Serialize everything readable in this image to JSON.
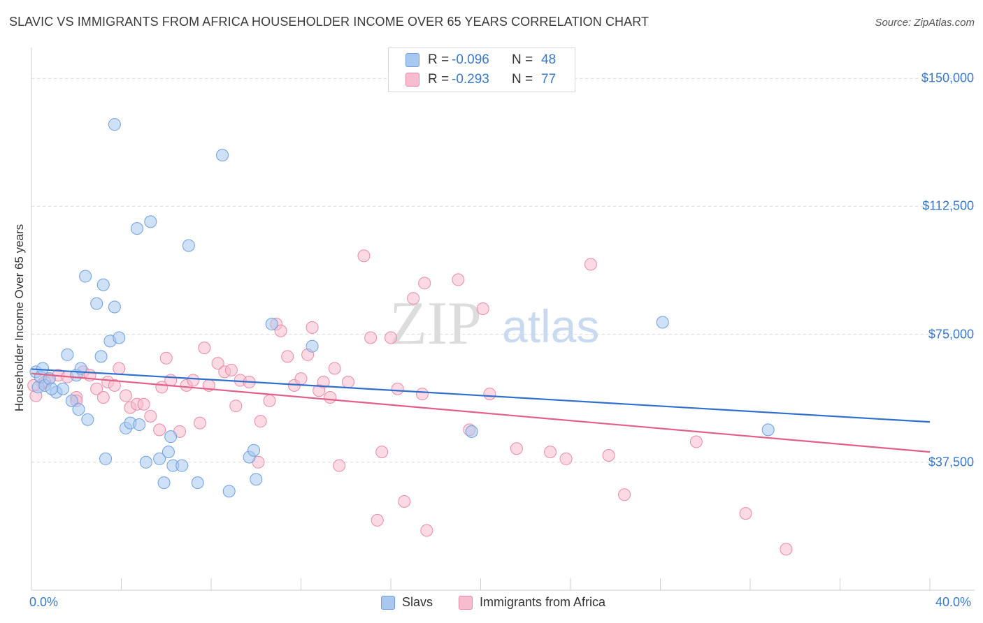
{
  "header": {
    "title": "SLAVIC VS IMMIGRANTS FROM AFRICA HOUSEHOLDER INCOME OVER 65 YEARS CORRELATION CHART",
    "source": "Source: ZipAtlas.com"
  },
  "watermark": {
    "zip": "ZIP",
    "atlas": "atlas"
  },
  "legend": {
    "rows": [
      {
        "r_label": "R =",
        "r_value": "-0.096",
        "n_label": "N =",
        "n_value": "48",
        "color": "#a8c8f0",
        "stroke": "#6f9fdc"
      },
      {
        "r_label": "R =",
        "r_value": "-0.293",
        "n_label": "N =",
        "n_value": "77",
        "color": "#f7bccd",
        "stroke": "#e88aa6"
      }
    ],
    "bottom": [
      {
        "label": "Slavs",
        "color": "#a8c8f0",
        "stroke": "#6f9fdc"
      },
      {
        "label": "Immigrants from Africa",
        "color": "#f7bccd",
        "stroke": "#e88aa6"
      }
    ]
  },
  "chart_data": {
    "type": "scatter",
    "title": "SLAVIC VS IMMIGRANTS FROM AFRICA HOUSEHOLDER INCOME OVER 65 YEARS CORRELATION CHART",
    "xlabel": "",
    "ylabel": "Householder Income Over 65 years",
    "xlim": [
      0,
      40
    ],
    "ylim": [
      0,
      157000
    ],
    "x_tick_labels": [
      "0.0%",
      "40.0%"
    ],
    "y_ticks": [
      37500,
      75000,
      112500,
      150000
    ],
    "y_tick_labels": [
      "$37,500",
      "$75,000",
      "$112,500",
      "$150,000"
    ],
    "series": [
      {
        "name": "Slavs",
        "color": "#a8c8f0",
        "stroke": "#6f9fdc",
        "line_color": "#2f6fce",
        "trend": {
          "x": [
            0,
            40
          ],
          "y": [
            64800,
            49300
          ]
        },
        "points": [
          [
            0.2,
            64000
          ],
          [
            0.3,
            59500
          ],
          [
            0.4,
            62500
          ],
          [
            0.5,
            65000
          ],
          [
            0.6,
            60000
          ],
          [
            0.8,
            62000
          ],
          [
            1.1,
            58000
          ],
          [
            1.4,
            59000
          ],
          [
            1.6,
            69000
          ],
          [
            1.8,
            55500
          ],
          [
            2.0,
            63000
          ],
          [
            2.1,
            53000
          ],
          [
            2.2,
            65000
          ],
          [
            2.4,
            92000
          ],
          [
            2.5,
            50000
          ],
          [
            2.9,
            84000
          ],
          [
            3.1,
            68500
          ],
          [
            3.2,
            89500
          ],
          [
            3.3,
            38500
          ],
          [
            3.5,
            73000
          ],
          [
            3.7,
            83000
          ],
          [
            3.7,
            136500
          ],
          [
            3.9,
            74000
          ],
          [
            4.2,
            47500
          ],
          [
            4.4,
            49000
          ],
          [
            4.7,
            106000
          ],
          [
            4.8,
            48500
          ],
          [
            5.1,
            37500
          ],
          [
            5.3,
            108000
          ],
          [
            5.7,
            38500
          ],
          [
            5.9,
            31500
          ],
          [
            6.1,
            40500
          ],
          [
            6.2,
            45000
          ],
          [
            6.3,
            36500
          ],
          [
            6.7,
            36500
          ],
          [
            7.0,
            101000
          ],
          [
            7.4,
            31500
          ],
          [
            8.5,
            127500
          ],
          [
            8.8,
            29000
          ],
          [
            9.7,
            39000
          ],
          [
            9.9,
            41000
          ],
          [
            10.0,
            32500
          ],
          [
            10.7,
            78000
          ],
          [
            12.5,
            71500
          ],
          [
            19.6,
            46500
          ],
          [
            28.1,
            78500
          ],
          [
            32.8,
            47000
          ],
          [
            0.9,
            59000
          ]
        ]
      },
      {
        "name": "Immigrants from Africa",
        "color": "#f7bccd",
        "stroke": "#e88aa6",
        "line_color": "#e0608a",
        "trend": {
          "x": [
            0,
            40
          ],
          "y": [
            63500,
            40500
          ]
        },
        "points": [
          [
            0.2,
            57000
          ],
          [
            0.5,
            60500
          ],
          [
            0.8,
            62000
          ],
          [
            1.2,
            63000
          ],
          [
            1.6,
            62500
          ],
          [
            2.0,
            56500
          ],
          [
            2.3,
            64000
          ],
          [
            2.6,
            63000
          ],
          [
            2.9,
            59000
          ],
          [
            3.2,
            56500
          ],
          [
            3.4,
            61000
          ],
          [
            3.7,
            60000
          ],
          [
            3.9,
            65000
          ],
          [
            4.2,
            57000
          ],
          [
            4.4,
            53500
          ],
          [
            4.7,
            54500
          ],
          [
            5.0,
            54500
          ],
          [
            5.3,
            51000
          ],
          [
            5.7,
            47000
          ],
          [
            5.8,
            59500
          ],
          [
            6.0,
            68000
          ],
          [
            6.2,
            61500
          ],
          [
            6.6,
            46500
          ],
          [
            6.9,
            60000
          ],
          [
            7.2,
            61500
          ],
          [
            7.5,
            49000
          ],
          [
            7.7,
            71000
          ],
          [
            7.9,
            60000
          ],
          [
            8.3,
            66500
          ],
          [
            8.6,
            64000
          ],
          [
            8.9,
            64500
          ],
          [
            9.1,
            54000
          ],
          [
            9.3,
            61500
          ],
          [
            9.7,
            61000
          ],
          [
            10.1,
            37500
          ],
          [
            10.2,
            49500
          ],
          [
            10.6,
            55500
          ],
          [
            10.9,
            78000
          ],
          [
            11.1,
            76000
          ],
          [
            11.4,
            68500
          ],
          [
            11.7,
            60000
          ],
          [
            12.0,
            62000
          ],
          [
            12.3,
            69000
          ],
          [
            12.5,
            77000
          ],
          [
            12.8,
            58500
          ],
          [
            13.0,
            61000
          ],
          [
            13.3,
            56500
          ],
          [
            13.5,
            65000
          ],
          [
            13.7,
            36500
          ],
          [
            14.1,
            61000
          ],
          [
            14.8,
            98000
          ],
          [
            15.1,
            74000
          ],
          [
            15.4,
            20500
          ],
          [
            15.6,
            40500
          ],
          [
            16.0,
            74000
          ],
          [
            16.3,
            59000
          ],
          [
            16.6,
            26000
          ],
          [
            17.0,
            85500
          ],
          [
            17.4,
            57500
          ],
          [
            17.6,
            17500
          ],
          [
            17.5,
            90000
          ],
          [
            19.0,
            91000
          ],
          [
            19.5,
            47000
          ],
          [
            20.1,
            82500
          ],
          [
            20.4,
            57500
          ],
          [
            21.6,
            41500
          ],
          [
            23.1,
            40500
          ],
          [
            23.8,
            38500
          ],
          [
            24.9,
            95500
          ],
          [
            25.7,
            39500
          ],
          [
            26.4,
            28000
          ],
          [
            29.6,
            43500
          ],
          [
            31.8,
            22500
          ],
          [
            33.6,
            12000
          ],
          [
            0.1,
            60000
          ],
          [
            0.6,
            61000
          ],
          [
            2.0,
            55500
          ]
        ]
      }
    ]
  }
}
